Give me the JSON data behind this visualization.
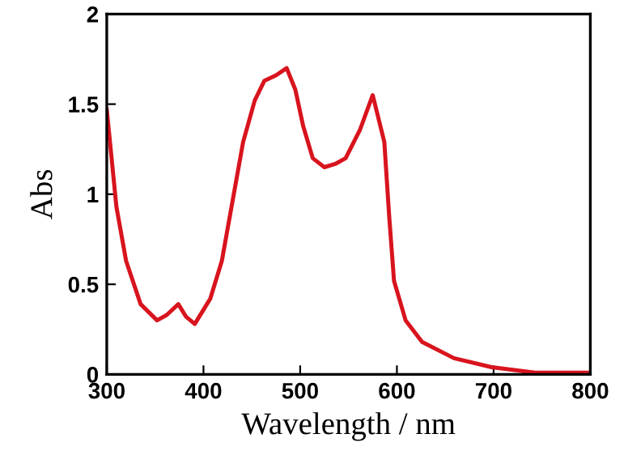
{
  "chart_data": {
    "type": "line",
    "xlabel": "Wavelength / nm",
    "ylabel": "Abs",
    "x": [
      300,
      310,
      320,
      335,
      352,
      362,
      374,
      382,
      391,
      407,
      419,
      429,
      441,
      453,
      463,
      475,
      486,
      495,
      503,
      513,
      525,
      537,
      547,
      562,
      575,
      587,
      592,
      597,
      609,
      626,
      659,
      698,
      743,
      800
    ],
    "series": [
      {
        "color": "#d8141e",
        "values": [
          1.47,
          0.93,
          0.63,
          0.39,
          0.3,
          0.33,
          0.39,
          0.32,
          0.28,
          0.42,
          0.63,
          0.93,
          1.29,
          1.52,
          1.63,
          1.66,
          1.7,
          1.58,
          1.38,
          1.2,
          1.15,
          1.17,
          1.2,
          1.36,
          1.55,
          1.29,
          0.88,
          0.52,
          0.3,
          0.18,
          0.09,
          0.04,
          0.01,
          0.01
        ]
      }
    ],
    "xlim": [
      300,
      800
    ],
    "ylim": [
      0,
      2
    ],
    "xticks": [
      300,
      400,
      500,
      600,
      700,
      800
    ],
    "yticks": [
      0,
      0.5,
      1,
      1.5,
      2
    ],
    "grid": false,
    "legend": false,
    "marker": "none",
    "line_style": "solid"
  }
}
